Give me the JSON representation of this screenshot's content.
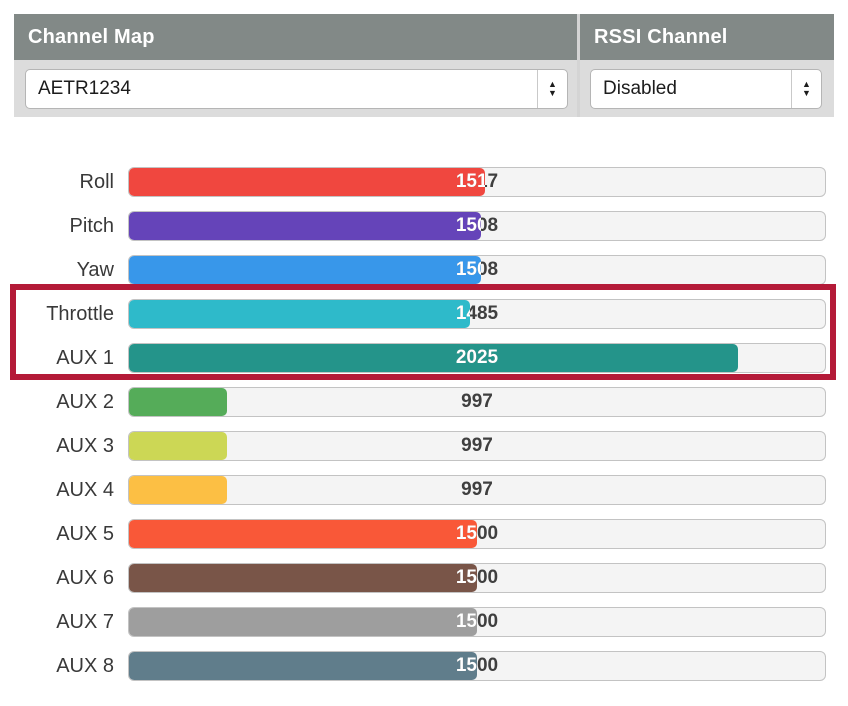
{
  "panel": {
    "channel_map": {
      "title": "Channel Map",
      "selected": "AETR1234"
    },
    "rssi_channel": {
      "title": "RSSI Channel",
      "selected": "Disabled"
    }
  },
  "icons": {
    "stepper_up": "▲",
    "stepper_down": "▼"
  },
  "channels": {
    "range": [
      800,
      2200
    ],
    "rows": [
      {
        "label": "Roll",
        "value": 1517,
        "color": "#f0473f"
      },
      {
        "label": "Pitch",
        "value": 1508,
        "color": "#6544b9"
      },
      {
        "label": "Yaw",
        "value": 1508,
        "color": "#3897ea"
      },
      {
        "label": "Throttle",
        "value": 1485,
        "color": "#2ebaca"
      },
      {
        "label": "AUX 1",
        "value": 2025,
        "color": "#24948a"
      },
      {
        "label": "AUX 2",
        "value": 997,
        "color": "#55ac59"
      },
      {
        "label": "AUX 3",
        "value": 997,
        "color": "#ccd755"
      },
      {
        "label": "AUX 4",
        "value": 997,
        "color": "#fcbf44"
      },
      {
        "label": "AUX 5",
        "value": 1500,
        "color": "#f95838"
      },
      {
        "label": "AUX 6",
        "value": 1500,
        "color": "#795548"
      },
      {
        "label": "AUX 7",
        "value": 1500,
        "color": "#9e9e9e"
      },
      {
        "label": "AUX 8",
        "value": 1500,
        "color": "#607d8b"
      }
    ]
  },
  "highlight": {
    "color": "#b41a38",
    "annotated_rows": [
      "Throttle",
      "AUX 1"
    ]
  }
}
